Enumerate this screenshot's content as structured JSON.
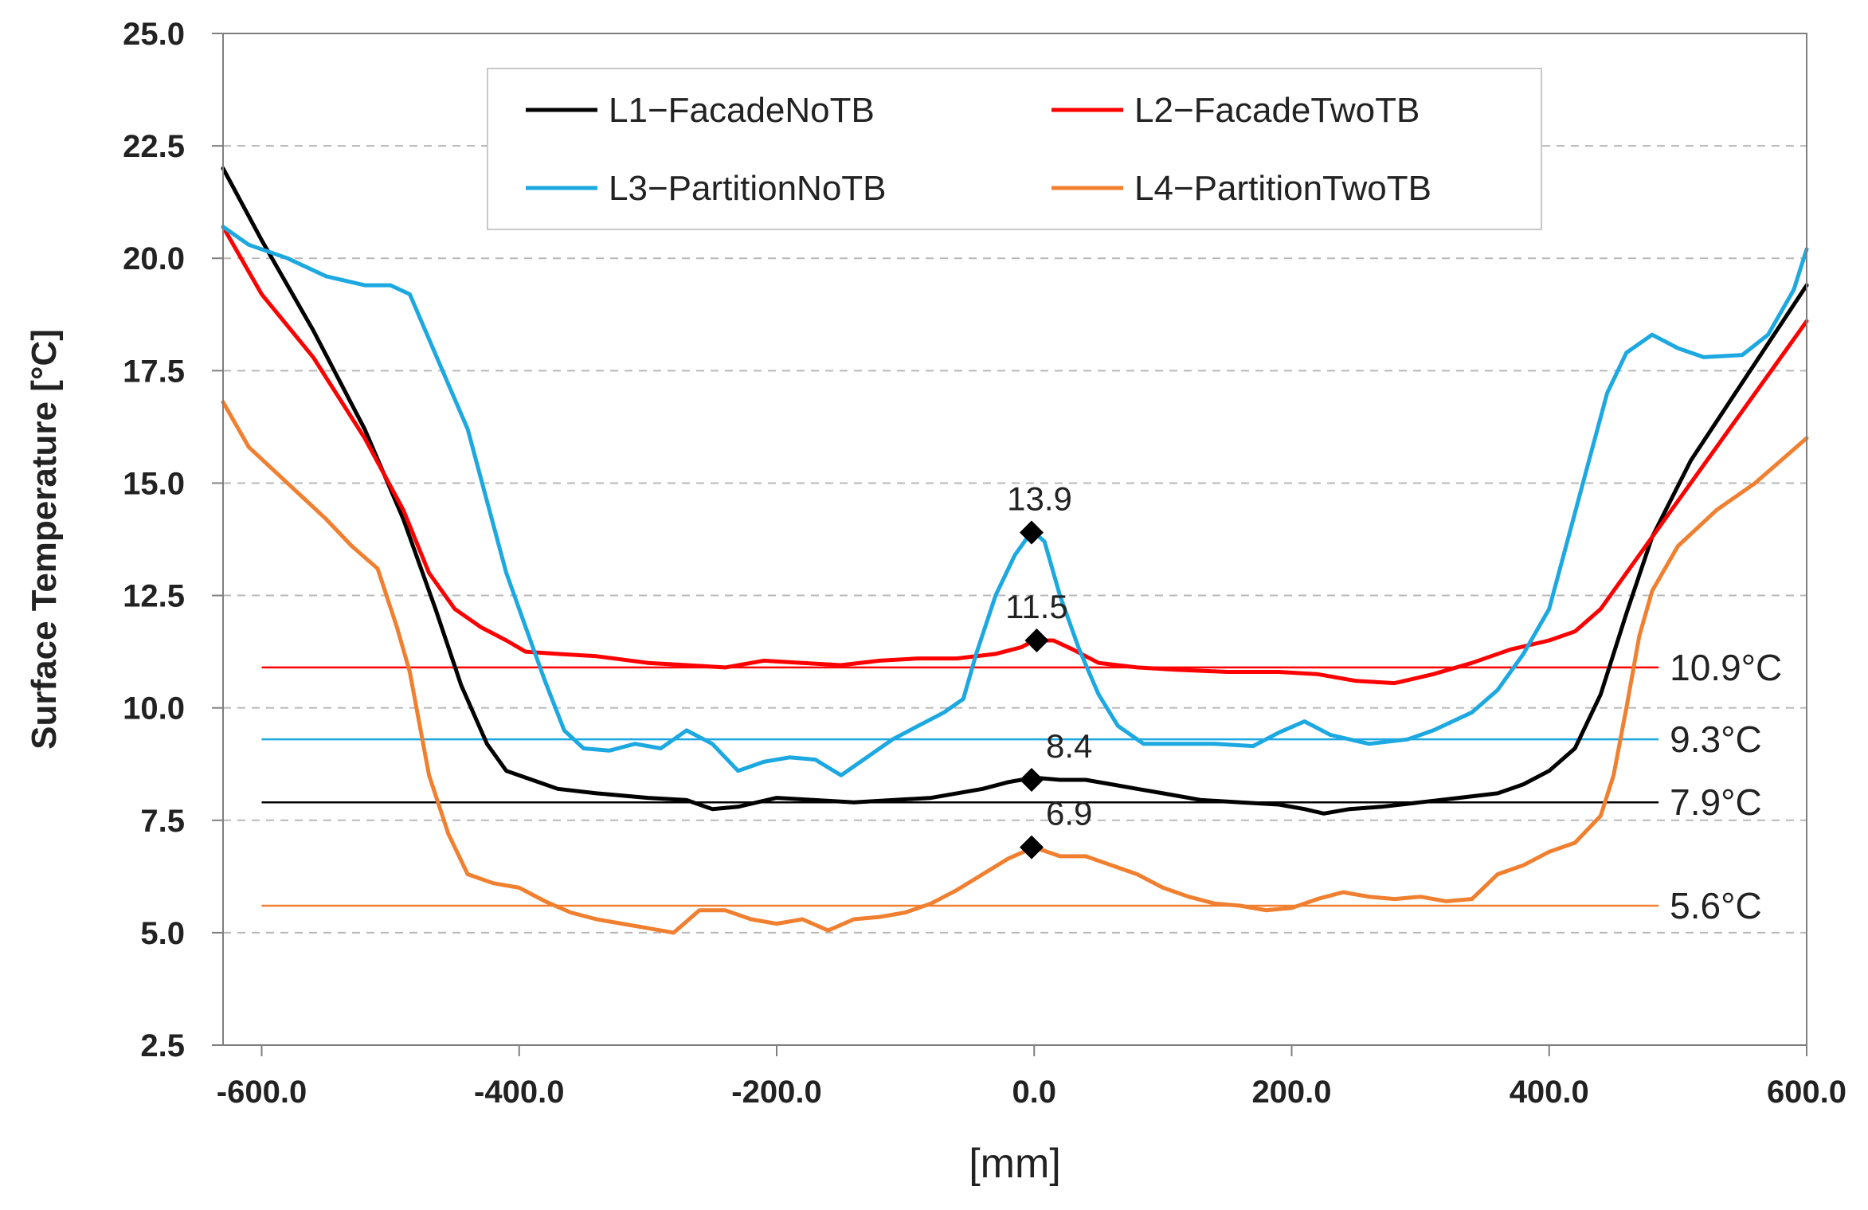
{
  "chart_data": {
    "type": "line",
    "title": "",
    "xlabel": "[mm]",
    "ylabel": "Surface Temperature [°C]",
    "xlim": [
      -630,
      600
    ],
    "ylim": [
      2.5,
      25.0
    ],
    "x_ticks": [
      -600,
      -400,
      -200,
      0,
      200,
      400,
      600
    ],
    "x_tick_labels": [
      "-600.0",
      "-400.0",
      "-200.0",
      "0.0",
      "200.0",
      "400.0",
      "600.0"
    ],
    "y_ticks": [
      2.5,
      5.0,
      7.5,
      10.0,
      12.5,
      15.0,
      17.5,
      20.0,
      22.5,
      25.0
    ],
    "y_tick_labels": [
      "2.5",
      "5.0",
      "7.5",
      "10.0",
      "12.5",
      "15.0",
      "17.5",
      "20.0",
      "22.5",
      "25.0"
    ],
    "grid": "horizontal-dashed",
    "legend_position": "top-center",
    "series": [
      {
        "name": "L1−FacadeNoTB",
        "color": "#000000",
        "points": [
          [
            -630,
            22.0
          ],
          [
            -600,
            20.4
          ],
          [
            -560,
            18.4
          ],
          [
            -520,
            16.2
          ],
          [
            -490,
            14.2
          ],
          [
            -465,
            12.2
          ],
          [
            -445,
            10.5
          ],
          [
            -425,
            9.2
          ],
          [
            -410,
            8.6
          ],
          [
            -390,
            8.4
          ],
          [
            -370,
            8.2
          ],
          [
            -340,
            8.1
          ],
          [
            -300,
            8.0
          ],
          [
            -270,
            7.95
          ],
          [
            -250,
            7.75
          ],
          [
            -230,
            7.8
          ],
          [
            -200,
            8.0
          ],
          [
            -170,
            7.95
          ],
          [
            -140,
            7.9
          ],
          [
            -110,
            7.95
          ],
          [
            -80,
            8.0
          ],
          [
            -60,
            8.1
          ],
          [
            -40,
            8.2
          ],
          [
            -20,
            8.35
          ],
          [
            0,
            8.45
          ],
          [
            20,
            8.4
          ],
          [
            40,
            8.4
          ],
          [
            60,
            8.3
          ],
          [
            80,
            8.2
          ],
          [
            100,
            8.1
          ],
          [
            130,
            7.95
          ],
          [
            160,
            7.9
          ],
          [
            190,
            7.85
          ],
          [
            210,
            7.75
          ],
          [
            225,
            7.65
          ],
          [
            245,
            7.75
          ],
          [
            270,
            7.8
          ],
          [
            300,
            7.9
          ],
          [
            330,
            8.0
          ],
          [
            360,
            8.1
          ],
          [
            380,
            8.3
          ],
          [
            400,
            8.6
          ],
          [
            420,
            9.1
          ],
          [
            440,
            10.3
          ],
          [
            460,
            12.1
          ],
          [
            480,
            13.8
          ],
          [
            510,
            15.5
          ],
          [
            540,
            16.8
          ],
          [
            570,
            18.1
          ],
          [
            600,
            19.4
          ]
        ]
      },
      {
        "name": "L2−FacadeTwoTB",
        "color": "#ff0000",
        "points": [
          [
            -630,
            20.7
          ],
          [
            -600,
            19.2
          ],
          [
            -560,
            17.8
          ],
          [
            -520,
            16.0
          ],
          [
            -490,
            14.4
          ],
          [
            -470,
            13.0
          ],
          [
            -450,
            12.2
          ],
          [
            -430,
            11.8
          ],
          [
            -410,
            11.5
          ],
          [
            -395,
            11.25
          ],
          [
            -370,
            11.2
          ],
          [
            -340,
            11.15
          ],
          [
            -300,
            11.0
          ],
          [
            -270,
            10.95
          ],
          [
            -240,
            10.9
          ],
          [
            -210,
            11.05
          ],
          [
            -180,
            11.0
          ],
          [
            -150,
            10.95
          ],
          [
            -120,
            11.05
          ],
          [
            -90,
            11.1
          ],
          [
            -60,
            11.1
          ],
          [
            -30,
            11.2
          ],
          [
            -10,
            11.35
          ],
          [
            0,
            11.5
          ],
          [
            15,
            11.5
          ],
          [
            30,
            11.3
          ],
          [
            50,
            11.0
          ],
          [
            80,
            10.9
          ],
          [
            110,
            10.85
          ],
          [
            150,
            10.8
          ],
          [
            190,
            10.8
          ],
          [
            220,
            10.75
          ],
          [
            250,
            10.6
          ],
          [
            280,
            10.55
          ],
          [
            310,
            10.75
          ],
          [
            340,
            11.0
          ],
          [
            370,
            11.3
          ],
          [
            400,
            11.5
          ],
          [
            420,
            11.7
          ],
          [
            440,
            12.2
          ],
          [
            460,
            13.0
          ],
          [
            480,
            13.8
          ],
          [
            510,
            15.0
          ],
          [
            540,
            16.2
          ],
          [
            570,
            17.4
          ],
          [
            600,
            18.6
          ]
        ]
      },
      {
        "name": "L3−PartitionNoTB",
        "color": "#1ca8e0",
        "points": [
          [
            -630,
            20.7
          ],
          [
            -610,
            20.3
          ],
          [
            -580,
            20.0
          ],
          [
            -550,
            19.6
          ],
          [
            -520,
            19.4
          ],
          [
            -500,
            19.4
          ],
          [
            -485,
            19.2
          ],
          [
            -470,
            18.2
          ],
          [
            -455,
            17.2
          ],
          [
            -440,
            16.2
          ],
          [
            -425,
            14.6
          ],
          [
            -410,
            13.0
          ],
          [
            -395,
            11.8
          ],
          [
            -380,
            10.6
          ],
          [
            -365,
            9.5
          ],
          [
            -350,
            9.1
          ],
          [
            -330,
            9.05
          ],
          [
            -310,
            9.2
          ],
          [
            -290,
            9.1
          ],
          [
            -270,
            9.5
          ],
          [
            -250,
            9.2
          ],
          [
            -230,
            8.6
          ],
          [
            -210,
            8.8
          ],
          [
            -190,
            8.9
          ],
          [
            -170,
            8.85
          ],
          [
            -150,
            8.5
          ],
          [
            -130,
            8.9
          ],
          [
            -110,
            9.3
          ],
          [
            -90,
            9.6
          ],
          [
            -70,
            9.9
          ],
          [
            -55,
            10.2
          ],
          [
            -45,
            11.2
          ],
          [
            -30,
            12.5
          ],
          [
            -15,
            13.4
          ],
          [
            -5,
            13.8
          ],
          [
            0,
            13.9
          ],
          [
            8,
            13.7
          ],
          [
            20,
            12.5
          ],
          [
            35,
            11.3
          ],
          [
            50,
            10.3
          ],
          [
            65,
            9.6
          ],
          [
            85,
            9.2
          ],
          [
            110,
            9.2
          ],
          [
            140,
            9.2
          ],
          [
            170,
            9.15
          ],
          [
            190,
            9.45
          ],
          [
            210,
            9.7
          ],
          [
            230,
            9.4
          ],
          [
            260,
            9.2
          ],
          [
            290,
            9.3
          ],
          [
            310,
            9.5
          ],
          [
            340,
            9.9
          ],
          [
            360,
            10.4
          ],
          [
            380,
            11.2
          ],
          [
            400,
            12.2
          ],
          [
            415,
            13.8
          ],
          [
            430,
            15.4
          ],
          [
            445,
            17.0
          ],
          [
            460,
            17.9
          ],
          [
            480,
            18.3
          ],
          [
            500,
            18.0
          ],
          [
            520,
            17.8
          ],
          [
            550,
            17.85
          ],
          [
            570,
            18.3
          ],
          [
            590,
            19.3
          ],
          [
            600,
            20.2
          ]
        ]
      },
      {
        "name": "L4−PartitionTwoTB",
        "color": "#f08030",
        "points": [
          [
            -630,
            16.8
          ],
          [
            -610,
            15.8
          ],
          [
            -580,
            15.0
          ],
          [
            -550,
            14.2
          ],
          [
            -530,
            13.6
          ],
          [
            -510,
            13.1
          ],
          [
            -495,
            11.8
          ],
          [
            -485,
            10.8
          ],
          [
            -470,
            8.5
          ],
          [
            -455,
            7.2
          ],
          [
            -440,
            6.3
          ],
          [
            -420,
            6.1
          ],
          [
            -400,
            6.0
          ],
          [
            -380,
            5.7
          ],
          [
            -360,
            5.45
          ],
          [
            -340,
            5.3
          ],
          [
            -320,
            5.2
          ],
          [
            -300,
            5.1
          ],
          [
            -280,
            5.0
          ],
          [
            -260,
            5.5
          ],
          [
            -240,
            5.5
          ],
          [
            -220,
            5.3
          ],
          [
            -200,
            5.2
          ],
          [
            -180,
            5.3
          ],
          [
            -160,
            5.05
          ],
          [
            -140,
            5.3
          ],
          [
            -120,
            5.35
          ],
          [
            -100,
            5.45
          ],
          [
            -80,
            5.65
          ],
          [
            -60,
            5.95
          ],
          [
            -40,
            6.3
          ],
          [
            -20,
            6.65
          ],
          [
            0,
            6.9
          ],
          [
            20,
            6.7
          ],
          [
            40,
            6.7
          ],
          [
            60,
            6.5
          ],
          [
            80,
            6.3
          ],
          [
            100,
            6.0
          ],
          [
            120,
            5.8
          ],
          [
            140,
            5.65
          ],
          [
            160,
            5.6
          ],
          [
            180,
            5.5
          ],
          [
            200,
            5.55
          ],
          [
            220,
            5.75
          ],
          [
            240,
            5.9
          ],
          [
            260,
            5.8
          ],
          [
            280,
            5.75
          ],
          [
            300,
            5.8
          ],
          [
            320,
            5.7
          ],
          [
            340,
            5.75
          ],
          [
            360,
            6.3
          ],
          [
            380,
            6.5
          ],
          [
            400,
            6.8
          ],
          [
            420,
            7.0
          ],
          [
            440,
            7.6
          ],
          [
            450,
            8.5
          ],
          [
            460,
            10.0
          ],
          [
            470,
            11.6
          ],
          [
            480,
            12.6
          ],
          [
            500,
            13.6
          ],
          [
            530,
            14.4
          ],
          [
            560,
            15.0
          ],
          [
            600,
            16.0
          ]
        ]
      }
    ],
    "reference_lines": [
      {
        "series": "L1−FacadeNoTB",
        "value": 7.9,
        "label": "7.9°C",
        "color": "#000000",
        "x_start": -600,
        "x_end": 485
      },
      {
        "series": "L2−FacadeTwoTB",
        "value": 10.9,
        "label": "10.9°C",
        "color": "#ff0000",
        "x_start": -600,
        "x_end": 485
      },
      {
        "series": "L3−PartitionNoTB",
        "value": 9.3,
        "label": "9.3°C",
        "color": "#1ca8e0",
        "x_start": -600,
        "x_end": 485
      },
      {
        "series": "L4−PartitionTwoTB",
        "value": 5.6,
        "label": "5.6°C",
        "color": "#f08030",
        "x_start": -600,
        "x_end": 485
      }
    ],
    "peak_markers": [
      {
        "x": -2,
        "y": 13.9,
        "label": "13.9"
      },
      {
        "x": 2,
        "y": 11.5,
        "label": "11.5"
      },
      {
        "x": -2,
        "y": 8.4,
        "label": "8.4"
      },
      {
        "x": -2,
        "y": 6.9,
        "label": "6.9"
      }
    ]
  }
}
